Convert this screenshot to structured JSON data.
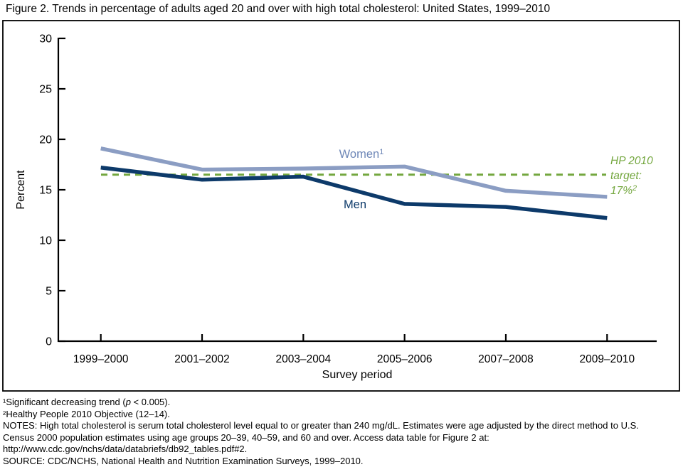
{
  "page": {
    "title": "Figure 2. Trends in percentage of adults aged 20 and over with high total cholesterol: United States, 1999–2010"
  },
  "chart_data": {
    "type": "line",
    "title": "Figure 2. Trends in percentage of adults aged 20 and over with high total cholesterol: United States, 1999–2010",
    "xlabel": "Survey period",
    "ylabel": "Percent",
    "ylim": [
      0,
      30
    ],
    "yticks": [
      0,
      5,
      10,
      15,
      20,
      25,
      30
    ],
    "grid": false,
    "legend_position": "inline-labels",
    "categories": [
      "1999–2000",
      "2001–2002",
      "2003–2004",
      "2005–2006",
      "2007–2008",
      "2009–2010"
    ],
    "series": [
      {
        "name": "Women",
        "sup": "1",
        "values": [
          19.1,
          17.0,
          17.1,
          17.3,
          14.9,
          14.3
        ],
        "color": "#8b9dc3",
        "label_color": "#6e87b7"
      },
      {
        "name": "Men",
        "sup": "",
        "values": [
          17.2,
          16.0,
          16.3,
          13.6,
          13.3,
          12.2
        ],
        "color": "#0d3a6a",
        "label_color": "#0d3a6a"
      }
    ],
    "target_line": {
      "label_lines": [
        "HP 2010",
        "target:",
        "17%"
      ],
      "sup": "2",
      "stated_value": 17,
      "value_drawn": 16.5,
      "color": "#74a73f"
    },
    "axis_color": "#000000"
  },
  "footnotes": {
    "fn1_pre": "¹Significant decreasing trend (",
    "fn1_italic": "p",
    "fn1_post": " < 0.005).",
    "fn2": "²Healthy People 2010 Objective (12–14).",
    "notes_lines": [
      "NOTES: High total cholesterol is serum total cholesterol level equal to or greater than 240 mg/dL. Estimates were age adjusted by the direct method to U.S.",
      "Census 2000 population estimates using age groups 20–39, 40–59, and 60 and over. Access data table for Figure 2 at:",
      "http://www.cdc.gov/nchs/data/databriefs/db92_tables.pdf#2."
    ],
    "source": "SOURCE: CDC/NCHS, National Health and Nutrition Examination Surveys, 1999–2010."
  }
}
